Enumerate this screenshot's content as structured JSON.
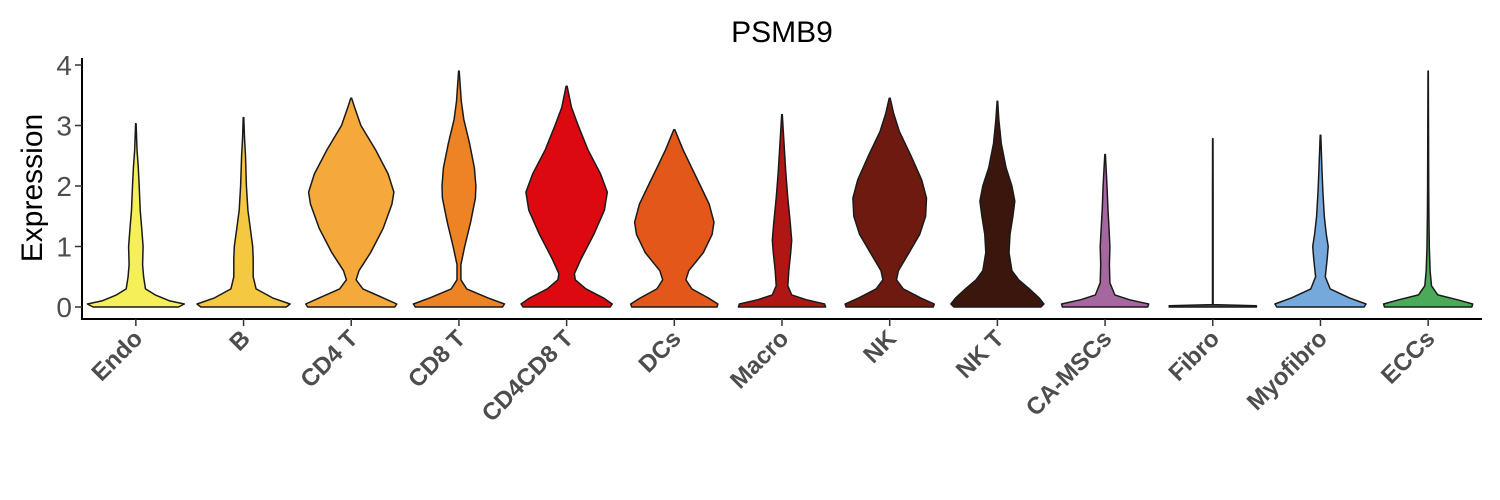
{
  "chart_data": {
    "type": "violin",
    "title": "PSMB9",
    "xlabel": "",
    "ylabel": "Expression",
    "ylim": [
      0,
      4
    ],
    "yticks": [
      "0",
      "1",
      "2",
      "3",
      "4"
    ],
    "grid": false,
    "legend": "none",
    "categories": [
      "Endo",
      "B",
      "CD4 T",
      "CD8 T",
      "CD4CD8 T",
      "DCs",
      "Macro",
      "NK",
      "NK T",
      "CA-MSCs",
      "Fibro",
      "Myofibro",
      "ECCs"
    ],
    "colors": [
      "#F5F05A",
      "#F5C842",
      "#F4A93A",
      "#EE8326",
      "#DC0A10",
      "#E3571A",
      "#B01614",
      "#6E1A10",
      "#3A160D",
      "#A667A0",
      "#555555",
      "#76A9DB",
      "#4AAA5A"
    ],
    "series": [
      {
        "category": "Endo",
        "max": 3.03,
        "profile": [
          [
            0.0,
            0.44
          ],
          [
            0.05,
            0.5
          ],
          [
            0.1,
            0.35
          ],
          [
            0.2,
            0.2
          ],
          [
            0.3,
            0.1
          ],
          [
            0.5,
            0.08
          ],
          [
            0.7,
            0.07
          ],
          [
            1.0,
            0.075
          ],
          [
            1.3,
            0.06
          ],
          [
            1.6,
            0.045
          ],
          [
            2.0,
            0.035
          ],
          [
            2.3,
            0.025
          ],
          [
            2.6,
            0.012
          ],
          [
            3.03,
            0.003
          ]
        ]
      },
      {
        "category": "B",
        "max": 3.13,
        "profile": [
          [
            0.0,
            0.44
          ],
          [
            0.05,
            0.48
          ],
          [
            0.15,
            0.3
          ],
          [
            0.3,
            0.13
          ],
          [
            0.5,
            0.1
          ],
          [
            0.8,
            0.1
          ],
          [
            1.0,
            0.095
          ],
          [
            1.3,
            0.07
          ],
          [
            1.6,
            0.045
          ],
          [
            2.0,
            0.03
          ],
          [
            2.5,
            0.02
          ],
          [
            2.8,
            0.01
          ],
          [
            3.13,
            0.003
          ]
        ]
      },
      {
        "category": "CD4 T",
        "max": 3.45,
        "profile": [
          [
            0.0,
            0.45
          ],
          [
            0.05,
            0.47
          ],
          [
            0.15,
            0.33
          ],
          [
            0.3,
            0.12
          ],
          [
            0.45,
            0.05
          ],
          [
            0.6,
            0.08
          ],
          [
            0.9,
            0.2
          ],
          [
            1.3,
            0.33
          ],
          [
            1.7,
            0.42
          ],
          [
            1.9,
            0.44
          ],
          [
            2.2,
            0.38
          ],
          [
            2.6,
            0.25
          ],
          [
            3.0,
            0.1
          ],
          [
            3.3,
            0.035
          ],
          [
            3.45,
            0.005
          ]
        ]
      },
      {
        "category": "CD8 T",
        "max": 3.9,
        "profile": [
          [
            0.0,
            0.45
          ],
          [
            0.05,
            0.47
          ],
          [
            0.15,
            0.3
          ],
          [
            0.3,
            0.08
          ],
          [
            0.45,
            0.02
          ],
          [
            0.7,
            0.02
          ],
          [
            1.0,
            0.06
          ],
          [
            1.4,
            0.12
          ],
          [
            1.8,
            0.17
          ],
          [
            2.0,
            0.175
          ],
          [
            2.3,
            0.16
          ],
          [
            2.7,
            0.11
          ],
          [
            3.1,
            0.05
          ],
          [
            3.4,
            0.025
          ],
          [
            3.9,
            0.003
          ]
        ]
      },
      {
        "category": "CD4CD8 T",
        "max": 3.65,
        "profile": [
          [
            0.0,
            0.45
          ],
          [
            0.05,
            0.47
          ],
          [
            0.15,
            0.38
          ],
          [
            0.3,
            0.2
          ],
          [
            0.45,
            0.09
          ],
          [
            0.55,
            0.08
          ],
          [
            0.8,
            0.15
          ],
          [
            1.2,
            0.28
          ],
          [
            1.6,
            0.39
          ],
          [
            1.9,
            0.42
          ],
          [
            2.2,
            0.35
          ],
          [
            2.6,
            0.22
          ],
          [
            3.0,
            0.12
          ],
          [
            3.3,
            0.05
          ],
          [
            3.65,
            0.005
          ]
        ]
      },
      {
        "category": "DCs",
        "max": 2.93,
        "profile": [
          [
            0.0,
            0.44
          ],
          [
            0.05,
            0.45
          ],
          [
            0.15,
            0.35
          ],
          [
            0.3,
            0.18
          ],
          [
            0.45,
            0.12
          ],
          [
            0.6,
            0.15
          ],
          [
            0.9,
            0.3
          ],
          [
            1.2,
            0.39
          ],
          [
            1.4,
            0.41
          ],
          [
            1.7,
            0.36
          ],
          [
            2.0,
            0.27
          ],
          [
            2.3,
            0.18
          ],
          [
            2.6,
            0.09
          ],
          [
            2.93,
            0.005
          ]
        ]
      },
      {
        "category": "Macro",
        "max": 3.18,
        "profile": [
          [
            0.0,
            0.45
          ],
          [
            0.05,
            0.44
          ],
          [
            0.12,
            0.25
          ],
          [
            0.2,
            0.1
          ],
          [
            0.35,
            0.06
          ],
          [
            0.6,
            0.07
          ],
          [
            0.9,
            0.09
          ],
          [
            1.1,
            0.1
          ],
          [
            1.4,
            0.085
          ],
          [
            1.8,
            0.06
          ],
          [
            2.2,
            0.04
          ],
          [
            2.6,
            0.025
          ],
          [
            3.18,
            0.003
          ]
        ]
      },
      {
        "category": "NK",
        "max": 3.45,
        "profile": [
          [
            0.0,
            0.45
          ],
          [
            0.05,
            0.46
          ],
          [
            0.15,
            0.32
          ],
          [
            0.3,
            0.14
          ],
          [
            0.45,
            0.07
          ],
          [
            0.6,
            0.09
          ],
          [
            0.9,
            0.2
          ],
          [
            1.2,
            0.31
          ],
          [
            1.5,
            0.37
          ],
          [
            1.8,
            0.38
          ],
          [
            2.1,
            0.33
          ],
          [
            2.5,
            0.22
          ],
          [
            2.9,
            0.1
          ],
          [
            3.2,
            0.04
          ],
          [
            3.45,
            0.005
          ]
        ]
      },
      {
        "category": "NK T",
        "max": 3.4,
        "profile": [
          [
            0.0,
            0.45
          ],
          [
            0.05,
            0.48
          ],
          [
            0.15,
            0.43
          ],
          [
            0.3,
            0.33
          ],
          [
            0.45,
            0.22
          ],
          [
            0.6,
            0.15
          ],
          [
            0.9,
            0.12
          ],
          [
            1.2,
            0.13
          ],
          [
            1.5,
            0.16
          ],
          [
            1.75,
            0.18
          ],
          [
            2.0,
            0.15
          ],
          [
            2.3,
            0.09
          ],
          [
            2.7,
            0.04
          ],
          [
            3.1,
            0.015
          ],
          [
            3.4,
            0.003
          ]
        ]
      },
      {
        "category": "CA-MSCs",
        "max": 2.52,
        "profile": [
          [
            0.0,
            0.44
          ],
          [
            0.05,
            0.45
          ],
          [
            0.12,
            0.25
          ],
          [
            0.2,
            0.1
          ],
          [
            0.4,
            0.05
          ],
          [
            0.7,
            0.045
          ],
          [
            1.0,
            0.05
          ],
          [
            1.3,
            0.04
          ],
          [
            1.6,
            0.03
          ],
          [
            2.0,
            0.02
          ],
          [
            2.52,
            0.003
          ]
        ]
      },
      {
        "category": "Fibro",
        "max": 2.78,
        "profile": [
          [
            0.0,
            0.45
          ],
          [
            0.02,
            0.45
          ],
          [
            0.04,
            0.003
          ],
          [
            1.0,
            0.003
          ],
          [
            2.0,
            0.003
          ],
          [
            2.78,
            0.002
          ]
        ]
      },
      {
        "category": "Myofibro",
        "max": 2.84,
        "profile": [
          [
            0.0,
            0.45
          ],
          [
            0.05,
            0.47
          ],
          [
            0.15,
            0.3
          ],
          [
            0.3,
            0.1
          ],
          [
            0.5,
            0.05
          ],
          [
            0.8,
            0.07
          ],
          [
            1.0,
            0.08
          ],
          [
            1.2,
            0.06
          ],
          [
            1.5,
            0.04
          ],
          [
            1.9,
            0.025
          ],
          [
            2.3,
            0.015
          ],
          [
            2.84,
            0.003
          ]
        ]
      },
      {
        "category": "ECCs",
        "max": 3.9,
        "profile": [
          [
            0.0,
            0.45
          ],
          [
            0.05,
            0.46
          ],
          [
            0.12,
            0.3
          ],
          [
            0.2,
            0.1
          ],
          [
            0.35,
            0.035
          ],
          [
            0.6,
            0.02
          ],
          [
            1.0,
            0.012
          ],
          [
            1.5,
            0.008
          ],
          [
            2.0,
            0.006
          ],
          [
            3.0,
            0.004
          ],
          [
            3.9,
            0.002
          ]
        ]
      }
    ]
  }
}
